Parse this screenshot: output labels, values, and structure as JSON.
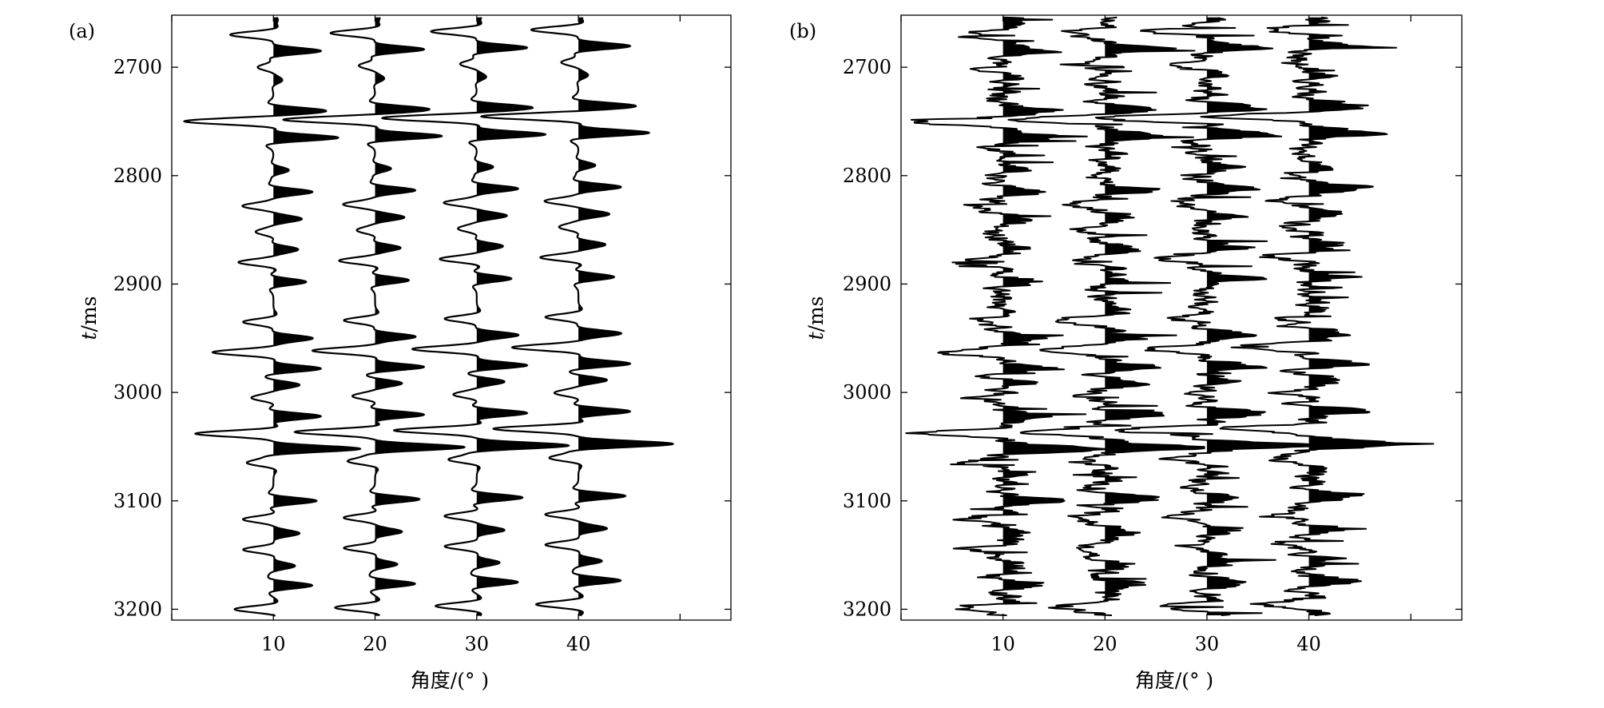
{
  "chart_data": [
    {
      "type": "seismic-wiggle",
      "panel_label": "(a)",
      "xlabel": "角度/(° )",
      "ylabel": "t/ms",
      "ylabel_italic": "t",
      "ylabel_rest": "/ms",
      "x_ticks": [
        "10",
        "20",
        "30",
        "40"
      ],
      "x_tick_values": [
        10,
        20,
        30,
        40
      ],
      "y_ticks": [
        "2700",
        "2800",
        "2900",
        "3000",
        "3100",
        "3200"
      ],
      "y_tick_values": [
        2700,
        2800,
        2900,
        3000,
        3100,
        3200
      ],
      "xlim": [
        0,
        55
      ],
      "ylim": [
        2652,
        3210
      ],
      "traces": [
        10,
        20,
        30,
        40
      ],
      "noise": false,
      "reflectors": [
        {
          "t": 2656,
          "amp": 0.05
        },
        {
          "t": 2670,
          "amp": -0.5
        },
        {
          "t": 2685,
          "amp": 0.55
        },
        {
          "t": 2700,
          "amp": -0.18
        },
        {
          "t": 2712,
          "amp": 0.1
        },
        {
          "t": 2740,
          "amp": 0.55
        },
        {
          "t": 2750,
          "amp": -1.0
        },
        {
          "t": 2765,
          "amp": 0.75
        },
        {
          "t": 2795,
          "amp": 0.18
        },
        {
          "t": 2815,
          "amp": 0.45
        },
        {
          "t": 2828,
          "amp": -0.35
        },
        {
          "t": 2840,
          "amp": 0.32
        },
        {
          "t": 2852,
          "amp": -0.2
        },
        {
          "t": 2868,
          "amp": 0.28
        },
        {
          "t": 2880,
          "amp": -0.4
        },
        {
          "t": 2898,
          "amp": 0.38
        },
        {
          "t": 2935,
          "amp": -0.35
        },
        {
          "t": 2950,
          "amp": 0.45
        },
        {
          "t": 2963,
          "amp": -0.7
        },
        {
          "t": 2978,
          "amp": 0.55
        },
        {
          "t": 2993,
          "amp": 0.3
        },
        {
          "t": 3005,
          "amp": -0.25
        },
        {
          "t": 3022,
          "amp": 0.55
        },
        {
          "t": 3038,
          "amp": -0.9
        },
        {
          "t": 3052,
          "amp": 1.0
        },
        {
          "t": 3065,
          "amp": -0.3
        },
        {
          "t": 3100,
          "amp": 0.5
        },
        {
          "t": 3117,
          "amp": -0.35
        },
        {
          "t": 3130,
          "amp": 0.3
        },
        {
          "t": 3145,
          "amp": -0.35
        },
        {
          "t": 3160,
          "amp": 0.25
        },
        {
          "t": 3178,
          "amp": 0.45
        },
        {
          "t": 3200,
          "amp": -0.45
        }
      ]
    },
    {
      "type": "seismic-wiggle",
      "panel_label": "(b)",
      "xlabel": "角度/(° )",
      "ylabel": "t/ms",
      "ylabel_italic": "t",
      "ylabel_rest": "/ms",
      "x_ticks": [
        "10",
        "20",
        "30",
        "40"
      ],
      "x_tick_values": [
        10,
        20,
        30,
        40
      ],
      "y_ticks": [
        "2700",
        "2800",
        "2900",
        "3000",
        "3100",
        "3200"
      ],
      "y_tick_values": [
        2700,
        2800,
        2900,
        3000,
        3100,
        3200
      ],
      "xlim": [
        0,
        55
      ],
      "ylim": [
        2652,
        3210
      ],
      "traces": [
        10,
        20,
        30,
        40
      ],
      "noise": true,
      "reflectors": [
        {
          "t": 2656,
          "amp": 0.05
        },
        {
          "t": 2670,
          "amp": -0.5
        },
        {
          "t": 2685,
          "amp": 0.55
        },
        {
          "t": 2700,
          "amp": -0.18
        },
        {
          "t": 2712,
          "amp": 0.1
        },
        {
          "t": 2740,
          "amp": 0.55
        },
        {
          "t": 2750,
          "amp": -1.0
        },
        {
          "t": 2765,
          "amp": 0.75
        },
        {
          "t": 2795,
          "amp": 0.18
        },
        {
          "t": 2815,
          "amp": 0.45
        },
        {
          "t": 2828,
          "amp": -0.35
        },
        {
          "t": 2840,
          "amp": 0.32
        },
        {
          "t": 2852,
          "amp": -0.2
        },
        {
          "t": 2868,
          "amp": 0.28
        },
        {
          "t": 2880,
          "amp": -0.4
        },
        {
          "t": 2898,
          "amp": 0.38
        },
        {
          "t": 2935,
          "amp": -0.35
        },
        {
          "t": 2950,
          "amp": 0.45
        },
        {
          "t": 2963,
          "amp": -0.7
        },
        {
          "t": 2978,
          "amp": 0.55
        },
        {
          "t": 2993,
          "amp": 0.3
        },
        {
          "t": 3005,
          "amp": -0.25
        },
        {
          "t": 3022,
          "amp": 0.55
        },
        {
          "t": 3038,
          "amp": -0.9
        },
        {
          "t": 3052,
          "amp": 1.0
        },
        {
          "t": 3065,
          "amp": -0.3
        },
        {
          "t": 3100,
          "amp": 0.5
        },
        {
          "t": 3117,
          "amp": -0.35
        },
        {
          "t": 3130,
          "amp": 0.3
        },
        {
          "t": 3145,
          "amp": -0.35
        },
        {
          "t": 3160,
          "amp": 0.25
        },
        {
          "t": 3178,
          "amp": 0.45
        },
        {
          "t": 3200,
          "amp": -0.45
        }
      ]
    }
  ]
}
